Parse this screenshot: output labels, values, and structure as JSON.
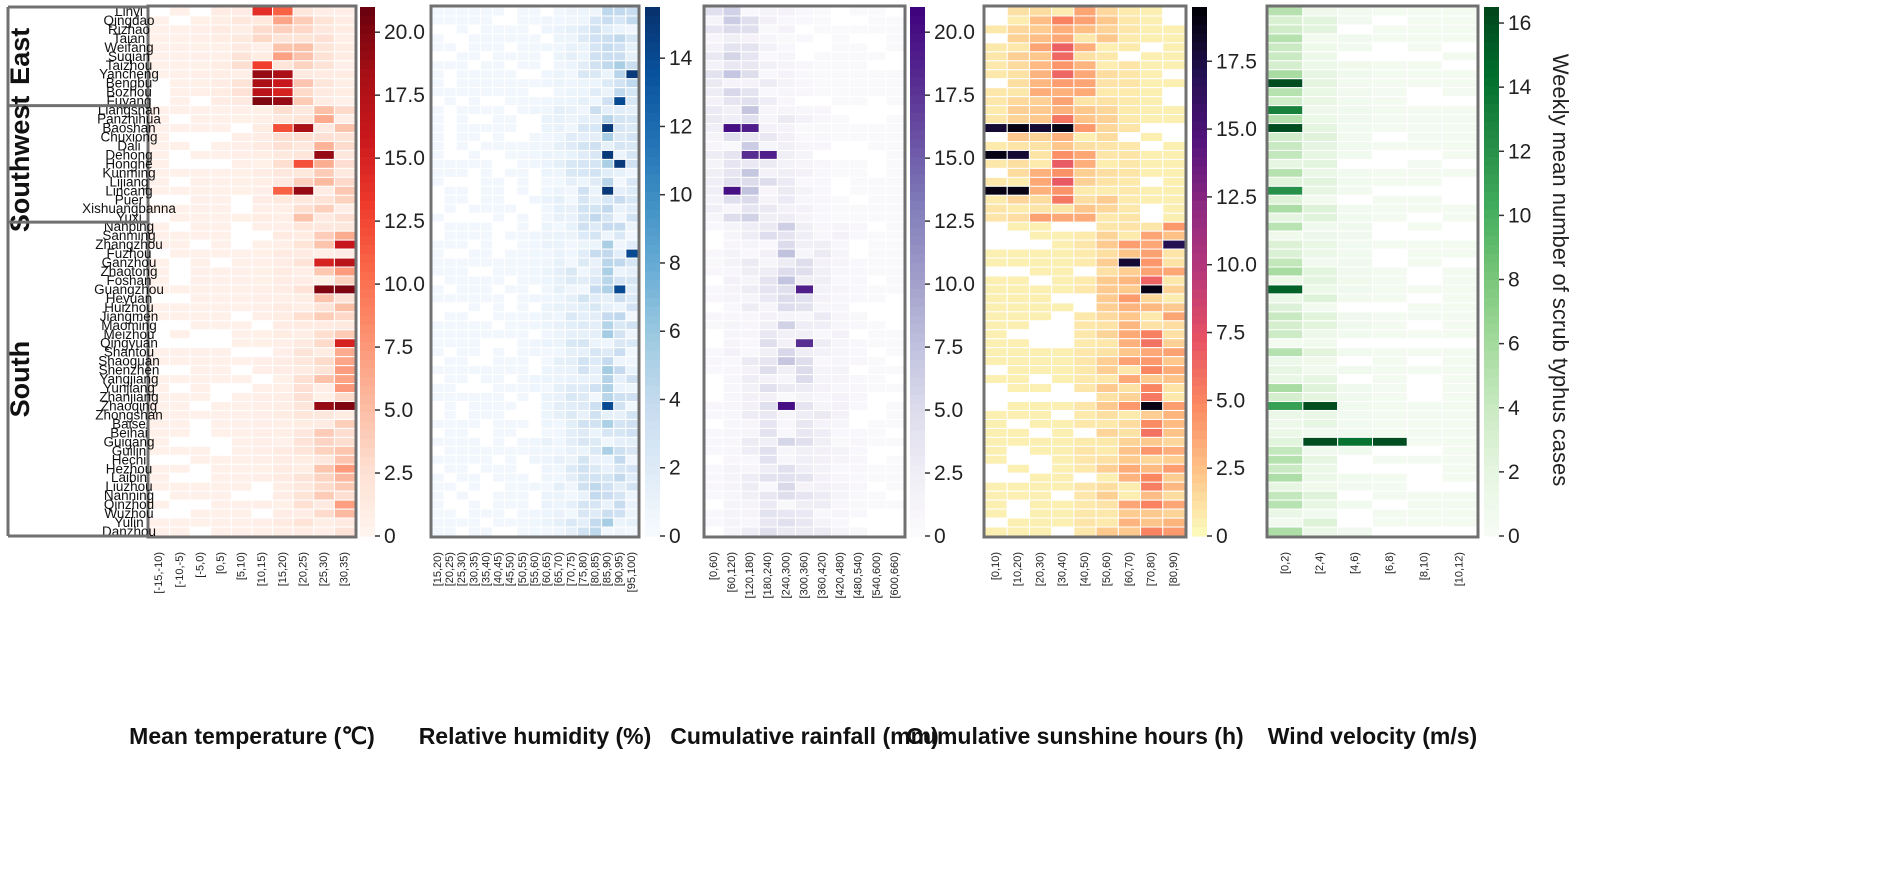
{
  "chart_data": {
    "type": "heatmap",
    "colorbar_label": "Weekly mean number of scrub typhus cases",
    "regions": [
      {
        "name": "East",
        "cities": [
          "Linyi",
          "Qingdao",
          "Rizhao",
          "Taian",
          "Weifang",
          "Suqian",
          "Taizhou",
          "Yancheng",
          "Bengbu",
          "Bozhou",
          "Fuyang"
        ]
      },
      {
        "name": "Southwest",
        "cities": [
          "Liangshan",
          "Panzhihua",
          "Baoshan",
          "Chuxiong",
          "Dali",
          "Dehong",
          "Honghe",
          "Kunming",
          "Lijiang",
          "Lincang",
          "Puer",
          "Xishuangbanna",
          "Yuxi"
        ]
      },
      {
        "name": "South",
        "cities": [
          "Nanping",
          "Sanming",
          "Zhangzhou",
          "Fuzhou",
          "Ganzhou",
          "Zhaotong",
          "Foshan",
          "Guangzhou",
          "Heyuan",
          "Huizhou",
          "Jiangmen",
          "Maoming",
          "Meizhou",
          "Qingyuan",
          "Shantou",
          "Shaoguan",
          "Shenzhen",
          "Yangjiang",
          "Yunjiang",
          "Zhanjiang",
          "Zhaoqing",
          "Zhongshan",
          "Baise",
          "Beihai",
          "Guigang",
          "Guilin",
          "Hechi",
          "Hezhou",
          "Laibin",
          "Liuzhou",
          "Nanning",
          "Qinzhou",
          "Wuzhou",
          "Yulin",
          "Danzhou"
        ]
      }
    ],
    "panels": [
      {
        "title": "Mean temperature (℃)",
        "variable": "temperature",
        "colormap": "Reds",
        "categories": [
          "[-15,-10)",
          "[-10,-5)",
          "[-5,0)",
          "[0,5)",
          "[5,10)",
          "[10,15)",
          "[15,20)",
          "[20,25)",
          "[25,30)",
          "[30,35)"
        ],
        "vmax": 21,
        "colorbar_ticks": [
          "0",
          "2.5",
          "5.0",
          "7.5",
          "10.0",
          "12.5",
          "15.0",
          "17.5",
          "20.0"
        ],
        "colorbar_values": [
          0,
          2.5,
          5,
          7.5,
          10,
          12.5,
          15,
          17.5,
          20
        ],
        "peak_by_region": [
          6,
          8,
          9
        ],
        "highlights": [
          {
            "city": "Linyi",
            "col": 5,
            "value": 14
          },
          {
            "city": "Linyi",
            "col": 6,
            "value": 11
          },
          {
            "city": "Taizhou",
            "col": 5,
            "value": 13
          },
          {
            "city": "Yancheng",
            "col": 5,
            "value": 19
          },
          {
            "city": "Yancheng",
            "col": 6,
            "value": 18
          },
          {
            "city": "Bengbu",
            "col": 5,
            "value": 18
          },
          {
            "city": "Bengbu",
            "col": 6,
            "value": 16
          },
          {
            "city": "Bozhou",
            "col": 5,
            "value": 17
          },
          {
            "city": "Bozhou",
            "col": 6,
            "value": 15
          },
          {
            "city": "Fuyang",
            "col": 5,
            "value": 20
          },
          {
            "city": "Fuyang",
            "col": 6,
            "value": 19
          },
          {
            "city": "Baoshan",
            "col": 7,
            "value": 18
          },
          {
            "city": "Baoshan",
            "col": 6,
            "value": 12
          },
          {
            "city": "Dehong",
            "col": 8,
            "value": 19
          },
          {
            "city": "Lincang",
            "col": 7,
            "value": 19
          },
          {
            "city": "Lincang",
            "col": 6,
            "value": 11
          },
          {
            "city": "Honghe",
            "col": 7,
            "value": 12
          },
          {
            "city": "Guangzhou",
            "col": 8,
            "value": 20
          },
          {
            "city": "Guangzhou",
            "col": 9,
            "value": 20
          },
          {
            "city": "Zhaoqing",
            "col": 8,
            "value": 19
          },
          {
            "city": "Zhaoqing",
            "col": 9,
            "value": 20
          },
          {
            "city": "Ganzhou",
            "col": 8,
            "value": 15
          },
          {
            "city": "Ganzhou",
            "col": 9,
            "value": 17
          },
          {
            "city": "Zhangzhou",
            "col": 9,
            "value": 16
          },
          {
            "city": "Qingyuan",
            "col": 9,
            "value": 15
          }
        ]
      },
      {
        "title": "Relative humidity (%)",
        "variable": "humidity",
        "colormap": "Blues",
        "categories": [
          "[15,20)",
          "[20,25)",
          "[25,30)",
          "[30,35)",
          "[35,40)",
          "[40,45)",
          "[45,50)",
          "[50,55)",
          "[55,60)",
          "[60,65)",
          "[65,70)",
          "[70,75)",
          "[75,80)",
          "[80,85)",
          "[85,90)",
          "[90,95)",
          "[95,100)"
        ],
        "vmax": 15.5,
        "colorbar_ticks": [
          "0",
          "2",
          "4",
          "6",
          "8",
          "10",
          "12",
          "14"
        ],
        "colorbar_values": [
          0,
          2,
          4,
          6,
          8,
          10,
          12,
          14
        ],
        "peak_by_region": [
          15,
          14,
          14
        ],
        "highlights": [
          {
            "city": "Yancheng",
            "col": 16,
            "value": 15
          },
          {
            "city": "Fuyang",
            "col": 15,
            "value": 14
          },
          {
            "city": "Baoshan",
            "col": 14,
            "value": 15
          },
          {
            "city": "Dehong",
            "col": 14,
            "value": 15
          },
          {
            "city": "Honghe",
            "col": 15,
            "value": 15
          },
          {
            "city": "Lincang",
            "col": 14,
            "value": 15
          },
          {
            "city": "Guangzhou",
            "col": 15,
            "value": 14
          },
          {
            "city": "Fuzhou",
            "col": 16,
            "value": 14
          },
          {
            "city": "Zhaoqing",
            "col": 14,
            "value": 14
          }
        ]
      },
      {
        "title": "Cumulative rainfall (mm)",
        "variable": "rainfall",
        "colormap": "Purples",
        "categories": [
          "[0,60)",
          "[60,120)",
          "[120,180)",
          "[180,240)",
          "[240,300)",
          "[300,360)",
          "[360,420)",
          "[420,480)",
          "[480,540)",
          "[540,600)",
          "[600,660)"
        ],
        "vmax": 21,
        "colorbar_ticks": [
          "0",
          "2.5",
          "5.0",
          "7.5",
          "10.0",
          "12.5",
          "15.0",
          "17.5",
          "20.0"
        ],
        "colorbar_values": [
          0,
          2.5,
          5,
          7.5,
          10,
          12.5,
          15,
          17.5,
          20
        ],
        "peak_by_region": [
          1,
          2,
          4
        ],
        "highlights": [
          {
            "city": "Baoshan",
            "col": 1,
            "value": 20
          },
          {
            "city": "Baoshan",
            "col": 2,
            "value": 19
          },
          {
            "city": "Dehong",
            "col": 2,
            "value": 18
          },
          {
            "city": "Dehong",
            "col": 3,
            "value": 19
          },
          {
            "city": "Lincang",
            "col": 1,
            "value": 20
          },
          {
            "city": "Guangzhou",
            "col": 5,
            "value": 19
          },
          {
            "city": "Zhaoqing",
            "col": 4,
            "value": 20
          },
          {
            "city": "Qingyuan",
            "col": 5,
            "value": 18
          }
        ]
      },
      {
        "title": "Cumulative sunshine hours (h)",
        "variable": "sunshine",
        "colormap": "magma_r",
        "categories": [
          "[0,10)",
          "[10,20)",
          "[20,30)",
          "[30,40)",
          "[40,50)",
          "[50,60)",
          "[60,70)",
          "[70,80)",
          "[80,90)"
        ],
        "vmax": 19.5,
        "colorbar_ticks": [
          "0",
          "2.5",
          "5.0",
          "7.5",
          "10.0",
          "12.5",
          "15.0",
          "17.5"
        ],
        "colorbar_values": [
          0,
          2.5,
          5,
          7.5,
          10,
          12.5,
          15,
          17.5
        ],
        "peak_by_region": [
          3,
          3,
          7
        ],
        "highlights": [
          {
            "city": "Baoshan",
            "col": 0,
            "value": 18
          },
          {
            "city": "Baoshan",
            "col": 1,
            "value": 19
          },
          {
            "city": "Baoshan",
            "col": 2,
            "value": 18
          },
          {
            "city": "Baoshan",
            "col": 3,
            "value": 19
          },
          {
            "city": "Dehong",
            "col": 0,
            "value": 19
          },
          {
            "city": "Dehong",
            "col": 1,
            "value": 18
          },
          {
            "city": "Lincang",
            "col": 0,
            "value": 19
          },
          {
            "city": "Lincang",
            "col": 1,
            "value": 19
          },
          {
            "city": "Guangzhou",
            "col": 7,
            "value": 19
          },
          {
            "city": "Zhaoqing",
            "col": 7,
            "value": 19
          },
          {
            "city": "Zhangzhou",
            "col": 8,
            "value": 17
          },
          {
            "city": "Ganzhou",
            "col": 6,
            "value": 18
          }
        ]
      },
      {
        "title": "Wind velocity (m/s)",
        "variable": "wind",
        "colormap": "Greens",
        "categories": [
          "[0,2)",
          "[2,4)",
          "[4,6)",
          "[6,8)",
          "[8,10)",
          "[10,12)"
        ],
        "vmax": 16.5,
        "colorbar_ticks": [
          "0",
          "2",
          "4",
          "6",
          "8",
          "10",
          "12",
          "14",
          "16"
        ],
        "colorbar_values": [
          0,
          2,
          4,
          6,
          8,
          10,
          12,
          14,
          16
        ],
        "peak_by_region": [
          0,
          0,
          0
        ],
        "highlights": [
          {
            "city": "Bengbu",
            "col": 0,
            "value": 16
          },
          {
            "city": "Liangshan",
            "col": 0,
            "value": 13
          },
          {
            "city": "Baoshan",
            "col": 0,
            "value": 16
          },
          {
            "city": "Guangzhou",
            "col": 0,
            "value": 15
          },
          {
            "city": "Zhaoqing",
            "col": 1,
            "value": 16
          },
          {
            "city": "Zhaoqing",
            "col": 0,
            "value": 11
          },
          {
            "city": "Guigang",
            "col": 1,
            "value": 16
          },
          {
            "city": "Guigang",
            "col": 2,
            "value": 14
          },
          {
            "city": "Guigang",
            "col": 3,
            "value": 16
          },
          {
            "city": "Lincang",
            "col": 0,
            "value": 12
          }
        ]
      }
    ]
  }
}
